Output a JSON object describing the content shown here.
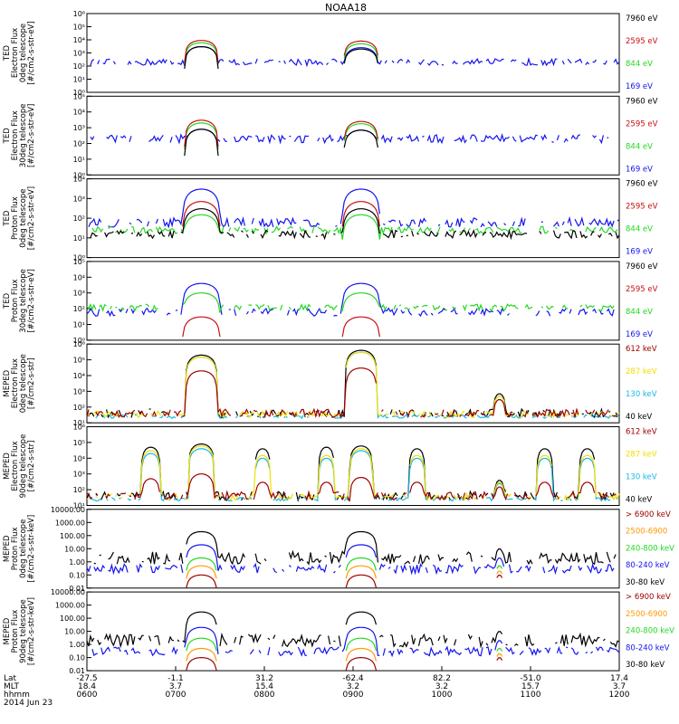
{
  "title": "NOAA18",
  "date_label": "2014 Jun 23",
  "colors": {
    "black": "#000000",
    "red": "#c81010",
    "green": "#22d822",
    "blue": "#1414ee",
    "darkred": "#a00000",
    "yellow": "#f0e000",
    "cyan": "#18b8e8",
    "orange": "#ff9a00"
  },
  "chart_data": [
    {
      "type": "line",
      "ylabel": [
        "TED",
        "Electron Flux",
        "0deg telescope",
        "[#/cm2-s-str-eV]"
      ],
      "yscale": "log",
      "ylim": [
        1,
        1000000
      ],
      "yticks": [
        {
          "v": 1,
          "t": "10⁰"
        },
        {
          "v": 10,
          "t": "10¹"
        },
        {
          "v": 100,
          "t": "10²"
        },
        {
          "v": 1000,
          "t": "10³"
        },
        {
          "v": 10000,
          "t": "10⁴"
        },
        {
          "v": 100000,
          "t": "10⁵"
        },
        {
          "v": 1000000,
          "t": "10⁶"
        }
      ],
      "series": [
        {
          "name": "7960 eV",
          "color": "black"
        },
        {
          "name": "2595 eV",
          "color": "red"
        },
        {
          "name": "844 eV",
          "color": "green"
        },
        {
          "name": "169 eV",
          "color": "blue"
        }
      ],
      "bumps": [
        {
          "c": 0.215,
          "w": 0.032,
          "peak": [
            3000,
            9000,
            6000,
            3000
          ]
        },
        {
          "c": 0.515,
          "w": 0.033,
          "peak": [
            2000,
            8000,
            5000,
            2500
          ]
        }
      ],
      "floor": [
        0,
        0,
        0,
        200
      ],
      "noise": [
        1,
        1.6,
        1.6,
        1.8
      ]
    },
    {
      "type": "line",
      "ylabel": [
        "TED",
        "Electron Flux",
        "30deg telescope",
        "[#/cm2-s-str-eV]"
      ],
      "yscale": "log",
      "ylim": [
        1,
        100000
      ],
      "yticks": [
        {
          "v": 1,
          "t": "10⁰"
        },
        {
          "v": 10,
          "t": "10¹"
        },
        {
          "v": 100,
          "t": "10²"
        },
        {
          "v": 1000,
          "t": "10³"
        },
        {
          "v": 10000,
          "t": "10⁴"
        },
        {
          "v": 100000,
          "t": "10⁵"
        }
      ],
      "series": [
        {
          "name": "7960 eV",
          "color": "black"
        },
        {
          "name": "2595 eV",
          "color": "red"
        },
        {
          "name": "844 eV",
          "color": "green"
        },
        {
          "name": "169 eV",
          "color": "blue"
        }
      ],
      "bumps": [
        {
          "c": 0.215,
          "w": 0.032,
          "peak": [
            800,
            3000,
            2000,
            800
          ]
        },
        {
          "c": 0.515,
          "w": 0.033,
          "peak": [
            700,
            2500,
            1800,
            700
          ]
        }
      ],
      "floor": [
        0,
        0,
        0,
        200
      ],
      "noise": [
        1,
        1.6,
        1.6,
        1.8
      ]
    },
    {
      "type": "line",
      "ylabel": [
        "TED",
        "Proton Flux",
        "0deg telescope",
        "[#/cm2-s-str-eV]"
      ],
      "yscale": "log",
      "ylim": [
        1,
        10000
      ],
      "yticks": [
        {
          "v": 1,
          "t": "10⁰"
        },
        {
          "v": 10,
          "t": "10¹"
        },
        {
          "v": 100,
          "t": "10²"
        },
        {
          "v": 1000,
          "t": "10³"
        },
        {
          "v": 10000,
          "t": "10⁴"
        }
      ],
      "series": [
        {
          "name": "7960 eV",
          "color": "black"
        },
        {
          "name": "2595 eV",
          "color": "red"
        },
        {
          "name": "844 eV",
          "color": "green"
        },
        {
          "name": "169 eV",
          "color": "blue"
        }
      ],
      "bumps": [
        {
          "c": 0.215,
          "w": 0.036,
          "peak": [
            300,
            700,
            150,
            3000
          ]
        },
        {
          "c": 0.515,
          "w": 0.036,
          "peak": [
            300,
            700,
            150,
            3000
          ]
        }
      ],
      "floor": [
        15,
        0,
        25,
        60
      ],
      "noise": [
        1.6,
        1.4,
        1.5,
        1.7
      ]
    },
    {
      "type": "line",
      "ylabel": [
        "TED",
        "Proton Flux",
        "30deg telescope",
        "[#/cm2-s-str-eV]"
      ],
      "yscale": "log",
      "ylim": [
        1,
        100000
      ],
      "yticks": [
        {
          "v": 1,
          "t": "10⁰"
        },
        {
          "v": 10,
          "t": "10¹"
        },
        {
          "v": 100,
          "t": "10²"
        },
        {
          "v": 1000,
          "t": "10³"
        },
        {
          "v": 10000,
          "t": "10⁴"
        },
        {
          "v": 100000,
          "t": "10⁵"
        }
      ],
      "series": [
        {
          "name": "7960 eV",
          "color": "black"
        },
        {
          "name": "2595 eV",
          "color": "red"
        },
        {
          "name": "844 eV",
          "color": "green"
        },
        {
          "name": "169 eV",
          "color": "blue"
        }
      ],
      "bumps": [
        {
          "c": 0.215,
          "w": 0.036,
          "peak": [
            0,
            30,
            1000,
            4000
          ]
        },
        {
          "c": 0.515,
          "w": 0.036,
          "peak": [
            0,
            30,
            1000,
            4000
          ]
        }
      ],
      "floor": [
        0,
        0,
        120,
        60
      ],
      "noise": [
        1,
        1.4,
        1.6,
        1.8
      ]
    },
    {
      "type": "line",
      "ylabel": [
        "MEPED",
        "Electron Flux",
        "0deg telescope",
        "[#/cm2-s-str]"
      ],
      "yscale": "log",
      "ylim": [
        10,
        1000000
      ],
      "yticks": [
        {
          "v": 10,
          "t": "10¹"
        },
        {
          "v": 100,
          "t": "10²"
        },
        {
          "v": 1000,
          "t": "10³"
        },
        {
          "v": 10000,
          "t": "10⁴"
        },
        {
          "v": 100000,
          "t": "10⁵"
        },
        {
          "v": 1000000,
          "t": "10⁶"
        }
      ],
      "series": [
        {
          "name": "612 keV",
          "color": "darkred"
        },
        {
          "name": "287 keV",
          "color": "yellow"
        },
        {
          "name": "130 keV",
          "color": "cyan"
        },
        {
          "name": "40 keV",
          "color": "black"
        }
      ],
      "bumps": [
        {
          "c": 0.215,
          "w": 0.03,
          "peak": [
            20000,
            150000,
            150000,
            200000
          ]
        },
        {
          "c": 0.515,
          "w": 0.03,
          "peak": [
            30000,
            300000,
            300000,
            400000
          ]
        },
        {
          "c": 0.775,
          "w": 0.012,
          "peak": [
            300,
            500,
            500,
            700
          ]
        }
      ],
      "floor": [
        40,
        35,
        25,
        40
      ],
      "noise": [
        1.8,
        1.6,
        1.3,
        1.9
      ]
    },
    {
      "type": "line",
      "ylabel": [
        "MEPED",
        "Electron Flux",
        "90deg telescope",
        "[#/cm2-s-str]"
      ],
      "yscale": "log",
      "ylim": [
        10,
        1000000
      ],
      "yticks": [
        {
          "v": 10,
          "t": "10¹"
        },
        {
          "v": 100,
          "t": "10²"
        },
        {
          "v": 1000,
          "t": "10³"
        },
        {
          "v": 10000,
          "t": "10⁴"
        },
        {
          "v": 100000,
          "t": "10⁵"
        },
        {
          "v": 1000000,
          "t": "10⁶"
        }
      ],
      "series": [
        {
          "name": "612 keV",
          "color": "darkred"
        },
        {
          "name": "287 keV",
          "color": "yellow"
        },
        {
          "name": "130 keV",
          "color": "cyan"
        },
        {
          "name": "40 keV",
          "color": "black"
        }
      ],
      "bumps": [
        {
          "c": 0.12,
          "w": 0.018,
          "peak": [
            500,
            30000,
            20000,
            50000
          ]
        },
        {
          "c": 0.215,
          "w": 0.025,
          "peak": [
            1000,
            60000,
            40000,
            80000
          ]
        },
        {
          "c": 0.33,
          "w": 0.015,
          "peak": [
            300,
            15000,
            10000,
            40000
          ]
        },
        {
          "c": 0.45,
          "w": 0.015,
          "peak": [
            300,
            15000,
            10000,
            50000
          ]
        },
        {
          "c": 0.515,
          "w": 0.022,
          "peak": [
            600,
            40000,
            30000,
            60000
          ]
        },
        {
          "c": 0.62,
          "w": 0.015,
          "peak": [
            300,
            15000,
            10000,
            40000
          ]
        },
        {
          "c": 0.775,
          "w": 0.01,
          "peak": [
            150,
            300,
            250,
            400
          ]
        },
        {
          "c": 0.86,
          "w": 0.015,
          "peak": [
            300,
            15000,
            10000,
            40000
          ]
        },
        {
          "c": 0.94,
          "w": 0.015,
          "peak": [
            300,
            15000,
            10000,
            40000
          ]
        }
      ],
      "floor": [
        40,
        35,
        25,
        40
      ],
      "noise": [
        1.8,
        1.6,
        1.3,
        1.9
      ]
    },
    {
      "type": "line",
      "ylabel": [
        "MEPED",
        "Proton Flux",
        "0deg telescope",
        "[#/cm2-s-str-keV]"
      ],
      "yscale": "log",
      "ylim": [
        0.01,
        10000
      ],
      "yticks": [
        {
          "v": 0.01,
          "t": "0.01"
        },
        {
          "v": 0.1,
          "t": "0.10"
        },
        {
          "v": 1,
          "t": "1.00"
        },
        {
          "v": 10,
          "t": "10.00"
        },
        {
          "v": 100,
          "t": "100.00"
        },
        {
          "v": 1000,
          "t": "1000.00"
        },
        {
          "v": 10000,
          "t": "10000.00"
        }
      ],
      "series": [
        {
          "name": "> 6900 keV",
          "color": "darkred"
        },
        {
          "name": "2500-6900",
          "color": "orange"
        },
        {
          "name": "240-800 keV",
          "color": "green"
        },
        {
          "name": "80-240 keV",
          "color": "blue"
        },
        {
          "name": "30-80 keV",
          "color": "black"
        }
      ],
      "bumps": [
        {
          "c": 0.215,
          "w": 0.03,
          "peak": [
            0.1,
            0.5,
            2,
            20,
            200
          ]
        },
        {
          "c": 0.515,
          "w": 0.03,
          "peak": [
            0.1,
            0.5,
            2,
            20,
            200
          ]
        },
        {
          "c": 0.775,
          "w": 0.008,
          "peak": [
            0.1,
            0.2,
            0.5,
            2,
            10
          ]
        }
      ],
      "floor": [
        0,
        0,
        0,
        0.3,
        2
      ],
      "noise": [
        1,
        1,
        1,
        2.2,
        3
      ]
    },
    {
      "type": "line",
      "ylabel": [
        "MEPED",
        "Proton Flux",
        "90deg telescope",
        "[#/cm2-s-str-keV]"
      ],
      "yscale": "log",
      "ylim": [
        0.01,
        10000
      ],
      "yticks": [
        {
          "v": 0.01,
          "t": "0.01"
        },
        {
          "v": 0.1,
          "t": "0.10"
        },
        {
          "v": 1,
          "t": "1.00"
        },
        {
          "v": 10,
          "t": "10.00"
        },
        {
          "v": 100,
          "t": "100.00"
        },
        {
          "v": 1000,
          "t": "1000.00"
        },
        {
          "v": 10000,
          "t": "10000.00"
        }
      ],
      "series": [
        {
          "name": "> 6900 keV",
          "color": "darkred"
        },
        {
          "name": "2500-6900",
          "color": "orange"
        },
        {
          "name": "240-800 keV",
          "color": "green"
        },
        {
          "name": "80-240 keV",
          "color": "blue"
        },
        {
          "name": "30-80 keV",
          "color": "black"
        }
      ],
      "bumps": [
        {
          "c": 0.215,
          "w": 0.03,
          "peak": [
            0.1,
            0.5,
            3,
            20,
            300
          ]
        },
        {
          "c": 0.515,
          "w": 0.03,
          "peak": [
            0.1,
            0.5,
            3,
            20,
            300
          ]
        },
        {
          "c": 0.775,
          "w": 0.008,
          "peak": [
            0.1,
            0.2,
            0.5,
            2,
            10
          ]
        }
      ],
      "floor": [
        0,
        0,
        0,
        0.3,
        2
      ],
      "noise": [
        1,
        1,
        1,
        2.2,
        3
      ]
    }
  ],
  "xaxis": {
    "row_labels": [
      "Lat",
      "MLT",
      "hhmm"
    ],
    "ticks": [
      {
        "lat": "-27.5",
        "mlt": "18.4",
        "time": "0600"
      },
      {
        "lat": "-1.1",
        "mlt": "3.7",
        "time": "0700"
      },
      {
        "lat": "31.2",
        "mlt": "15.4",
        "time": "0800"
      },
      {
        "lat": "-62.4",
        "mlt": "3.2",
        "time": "0900"
      },
      {
        "lat": "82.2",
        "mlt": "3.2",
        "time": "1000"
      },
      {
        "lat": "-51.0",
        "mlt": "15.7",
        "time": "1100"
      },
      {
        "lat": "17.4",
        "mlt": "3.7",
        "time": "1200"
      }
    ]
  }
}
